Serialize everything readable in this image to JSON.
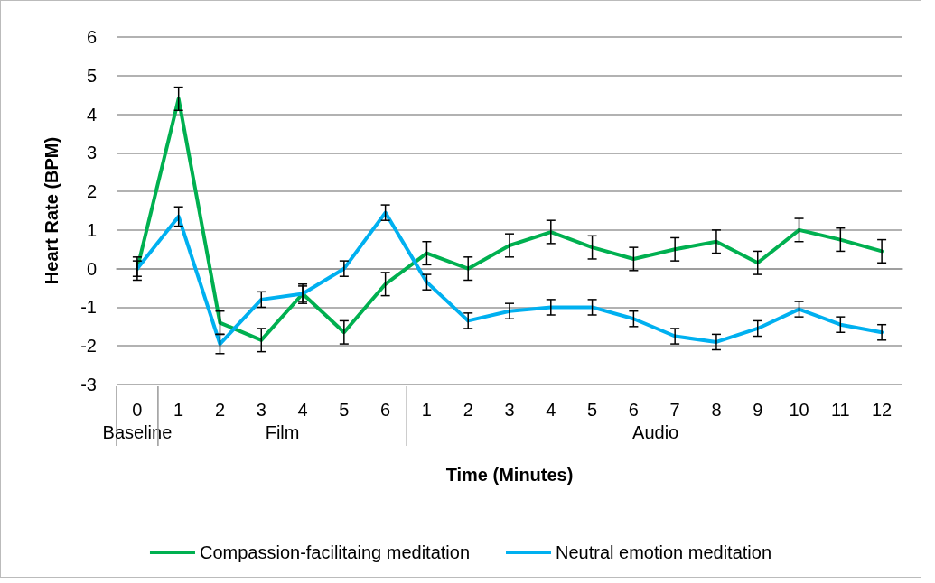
{
  "chart_data": {
    "type": "line",
    "xlabel": "Time (Minutes)",
    "ylabel": "Heart Rate (BPM)",
    "categories": [
      "0",
      "1",
      "2",
      "3",
      "4",
      "5",
      "6",
      "1",
      "2",
      "3",
      "4",
      "5",
      "6",
      "7",
      "8",
      "9",
      "10",
      "11",
      "12"
    ],
    "annotations": [
      "Baseline",
      "Film",
      "Audio"
    ],
    "series": [
      {
        "name": "Compassion-facilitaing meditation",
        "color": "#00b050",
        "values": [
          0,
          4.4,
          -1.4,
          -1.85,
          -0.65,
          -1.65,
          -0.4,
          0.4,
          0,
          0.6,
          0.95,
          0.55,
          0.25,
          0.5,
          0.7,
          0.15,
          1.0,
          0.75,
          0.45
        ],
        "errors": [
          0.3,
          0.3,
          0.3,
          0.3,
          0.25,
          0.3,
          0.3,
          0.3,
          0.3,
          0.3,
          0.3,
          0.3,
          0.3,
          0.3,
          0.3,
          0.3,
          0.3,
          0.3,
          0.3
        ]
      },
      {
        "name": "Neutral emotion meditation",
        "color": "#00b0f0",
        "values": [
          0,
          1.35,
          -1.95,
          -0.8,
          -0.65,
          0,
          1.45,
          -0.35,
          -1.35,
          -1.1,
          -1.0,
          -1.0,
          -1.3,
          -1.75,
          -1.9,
          -1.55,
          -1.05,
          -1.45,
          -1.65
        ],
        "errors": [
          0.2,
          0.25,
          0.25,
          0.2,
          0.2,
          0.2,
          0.2,
          0.2,
          0.2,
          0.2,
          0.2,
          0.2,
          0.2,
          0.2,
          0.2,
          0.2,
          0.2,
          0.2,
          0.2
        ]
      }
    ],
    "ylim": [
      -3,
      6
    ],
    "yticks": [
      -3,
      -2,
      -1,
      0,
      1,
      2,
      3,
      4,
      5,
      6
    ],
    "grid": "y",
    "legend": "bottom",
    "marker": "none",
    "line_style": "solid"
  }
}
